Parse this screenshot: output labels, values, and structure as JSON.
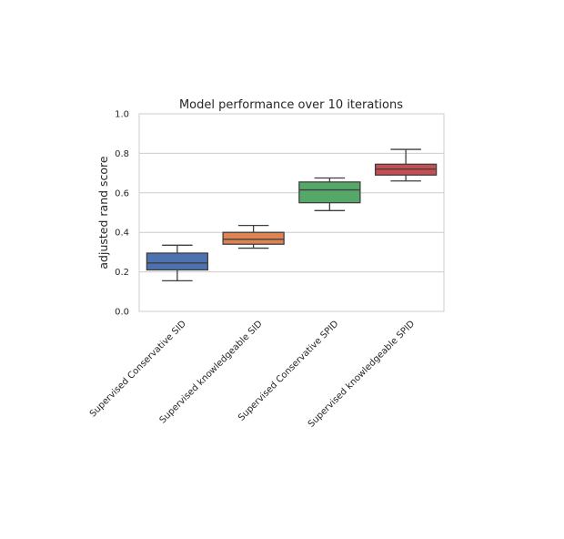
{
  "chart_data": {
    "type": "box",
    "title": "Model performance over 10 iterations",
    "xlabel": "",
    "ylabel": "adjusted rand score",
    "ylim": [
      0.0,
      1.0
    ],
    "yticks": [
      0.0,
      0.2,
      0.4,
      0.6,
      0.8,
      1.0
    ],
    "ytick_labels": [
      "0.0",
      "0.2",
      "0.4",
      "0.6",
      "0.8",
      "1.0"
    ],
    "grid": true,
    "categories": [
      "Supervised Conservative SID",
      "Supervised knowledgeable SID",
      "Supervised Conservative SPID",
      "Supervised knowledgeable SPID"
    ],
    "boxes": [
      {
        "min": 0.155,
        "q1": 0.21,
        "median": 0.245,
        "q3": 0.295,
        "max": 0.335,
        "color": "#4c72b0"
      },
      {
        "min": 0.32,
        "q1": 0.34,
        "median": 0.365,
        "q3": 0.4,
        "max": 0.435,
        "color": "#dd8452"
      },
      {
        "min": 0.51,
        "q1": 0.55,
        "median": 0.615,
        "q3": 0.655,
        "max": 0.675,
        "color": "#55a868"
      },
      {
        "min": 0.66,
        "q1": 0.69,
        "median": 0.72,
        "q3": 0.745,
        "max": 0.82,
        "color": "#c44e52"
      }
    ]
  }
}
